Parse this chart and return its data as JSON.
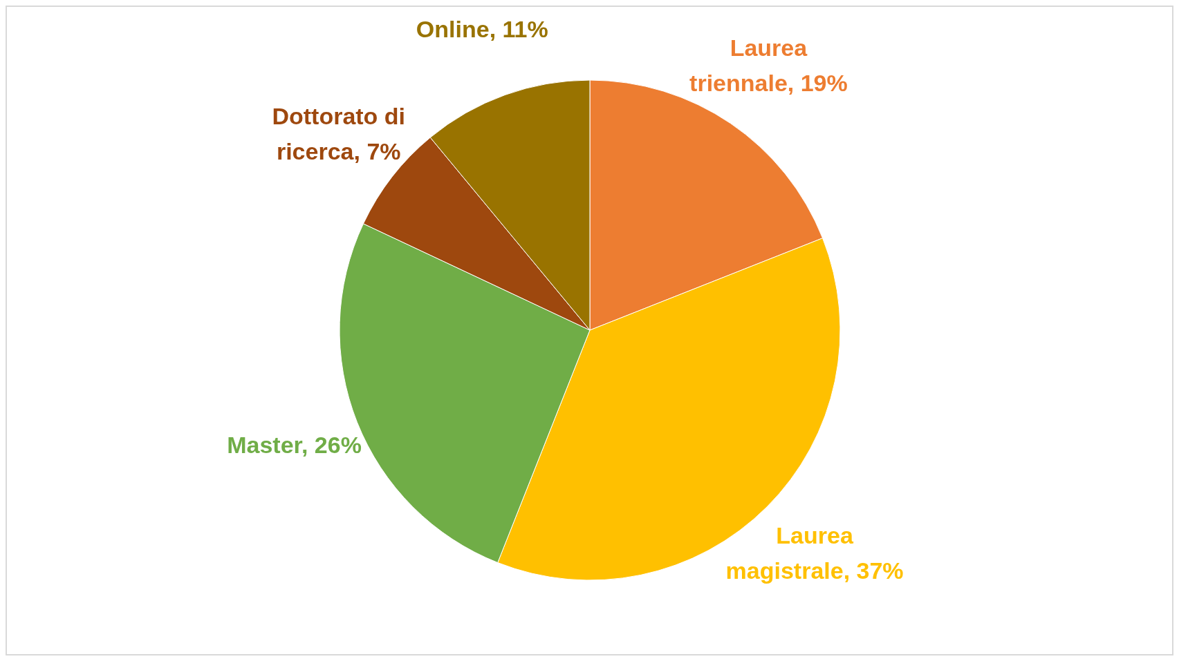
{
  "chart_data": {
    "type": "pie",
    "categories": [
      "Laurea triennale",
      "Laurea magistrale",
      "Master",
      "Dottorato di ricerca",
      "Online"
    ],
    "values": [
      19,
      37,
      26,
      7,
      11
    ],
    "colors": [
      "#ed7d31",
      "#ffc000",
      "#70ad47",
      "#9e480e",
      "#997300"
    ],
    "value_labels": [
      "19%",
      "37%",
      "26%",
      "7%",
      "11%"
    ]
  }
}
